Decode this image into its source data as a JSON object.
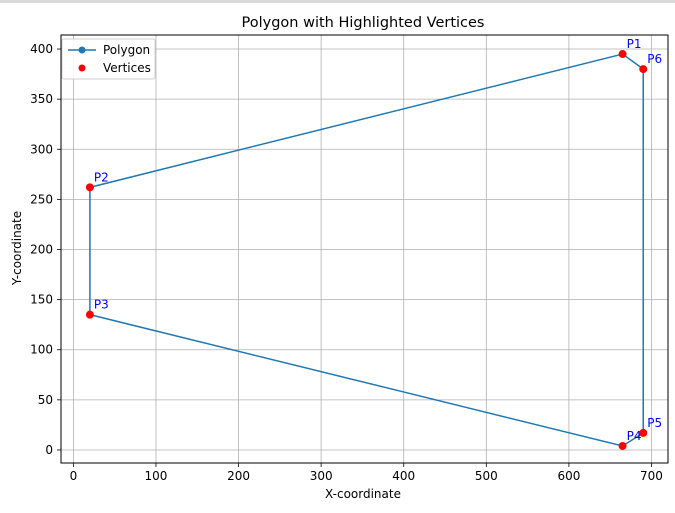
{
  "chart_data": {
    "type": "line",
    "title": "Polygon with Highlighted Vertices",
    "xlabel": "X-coordinate",
    "ylabel": "Y-coordinate",
    "xlim": [
      -15,
      720
    ],
    "ylim": [
      -13,
      414
    ],
    "xticks": [
      "0",
      "100",
      "200",
      "300",
      "400",
      "500",
      "600",
      "700"
    ],
    "yticks": [
      "0",
      "50",
      "100",
      "150",
      "200",
      "250",
      "300",
      "350",
      "400"
    ],
    "grid": true,
    "legend_position": "top-left",
    "series": [
      {
        "name": "Polygon",
        "color": "#1f77b4",
        "marker": "circle",
        "points": [
          {
            "x": 665,
            "y": 395
          },
          {
            "x": 20,
            "y": 262
          },
          {
            "x": 20,
            "y": 135
          },
          {
            "x": 665,
            "y": 4
          },
          {
            "x": 690,
            "y": 17
          },
          {
            "x": 690,
            "y": 380
          },
          {
            "x": 665,
            "y": 395
          }
        ]
      },
      {
        "name": "Vertices",
        "color": "#ff0000",
        "marker": "circle",
        "points": [
          {
            "label": "P1",
            "x": 665,
            "y": 395
          },
          {
            "label": "P2",
            "x": 20,
            "y": 262
          },
          {
            "label": "P3",
            "x": 20,
            "y": 135
          },
          {
            "label": "P4",
            "x": 665,
            "y": 4
          },
          {
            "label": "P5",
            "x": 690,
            "y": 17
          },
          {
            "label": "P6",
            "x": 690,
            "y": 380
          }
        ]
      }
    ],
    "label_color": "#0000ff"
  }
}
